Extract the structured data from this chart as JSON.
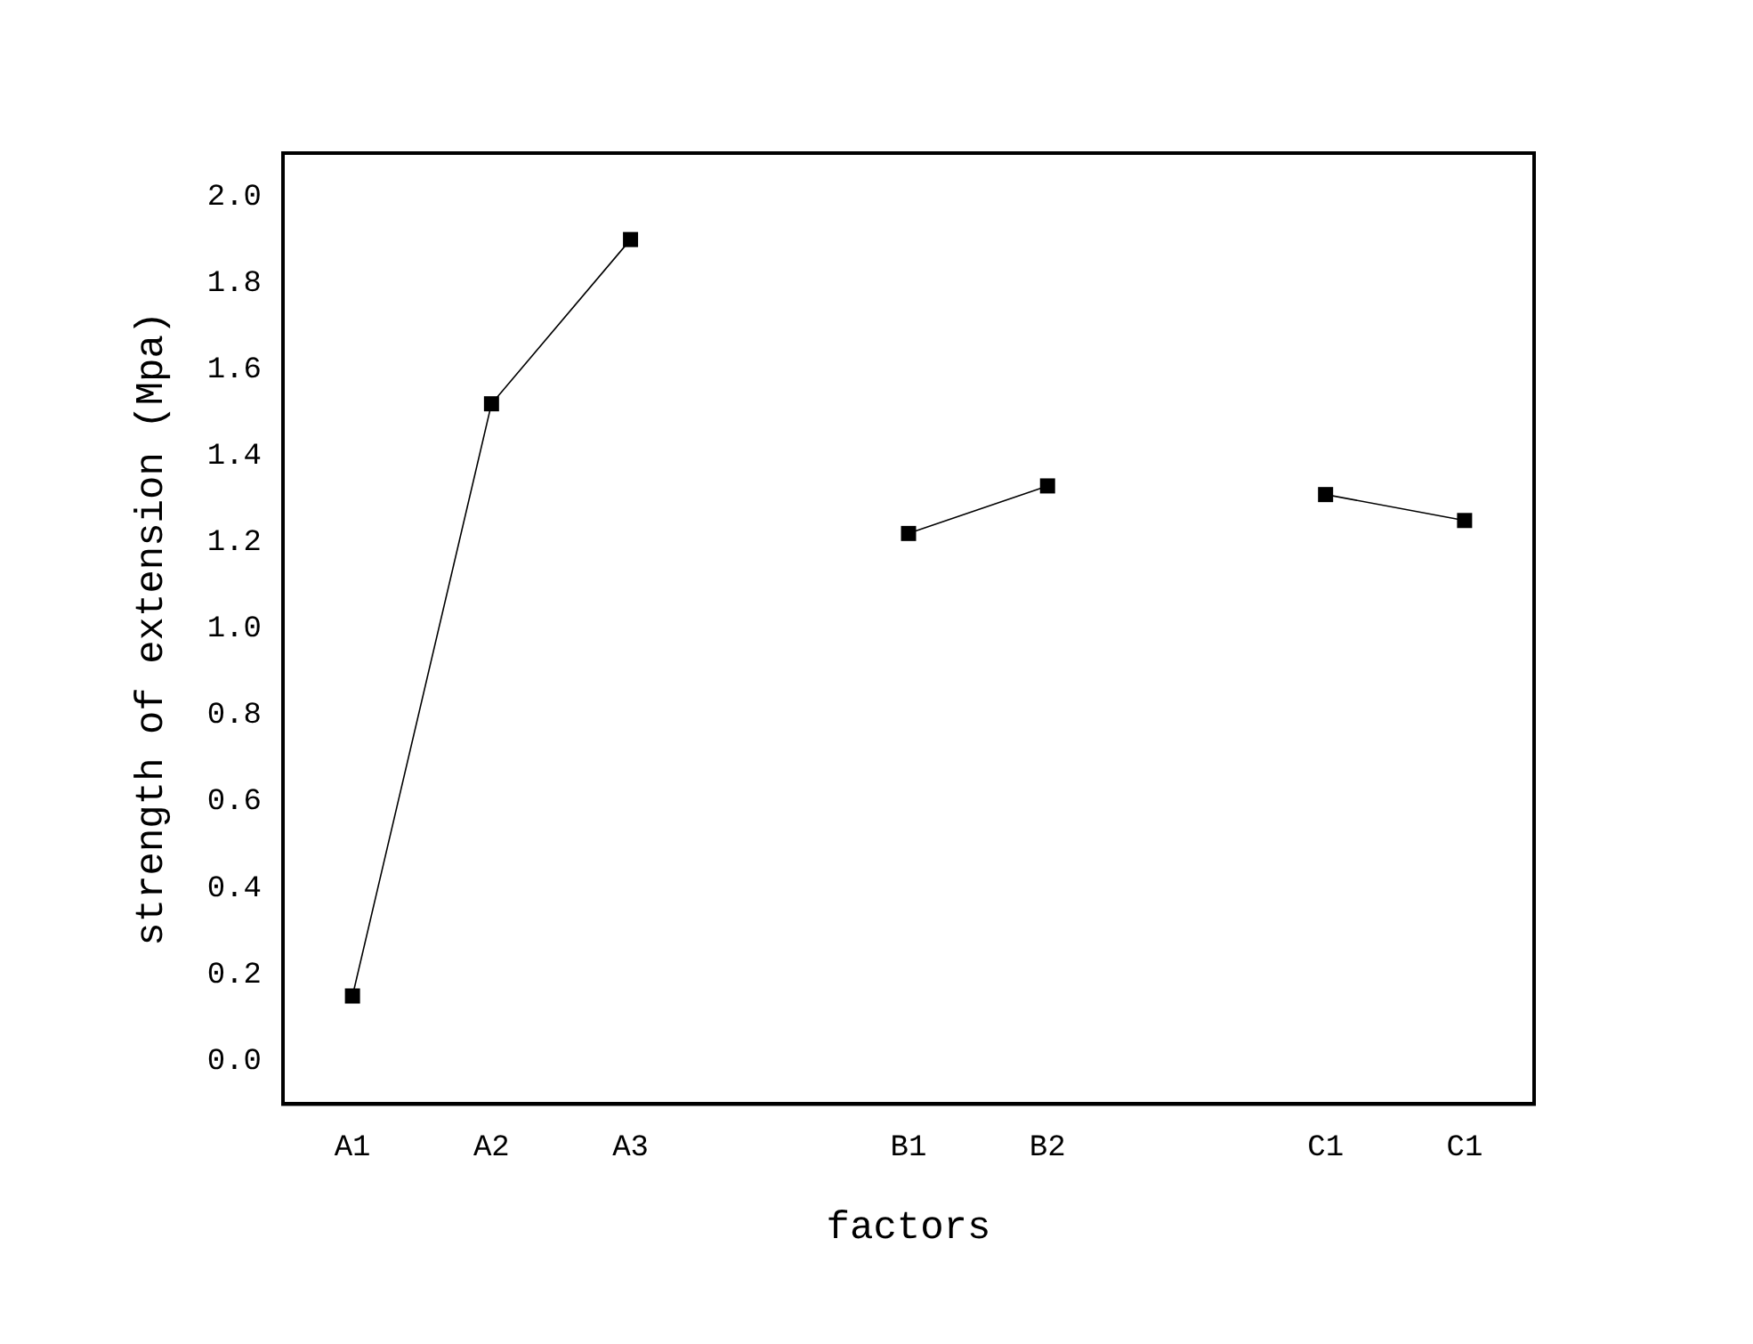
{
  "chart_data": {
    "type": "line",
    "xlabel": "factors",
    "ylabel": "strength of extension (Mpa)",
    "categories": [
      "A1",
      "A2",
      "A3",
      null,
      "B1",
      "B2",
      null,
      "C1",
      "C1"
    ],
    "series": [
      {
        "color": "#000000",
        "values": [
          0.15,
          1.52,
          1.9,
          null,
          1.22,
          1.33,
          null,
          1.31,
          1.25
        ]
      }
    ],
    "ylim": [
      -0.1,
      2.1
    ],
    "yticks": [
      {
        "value": 0,
        "label": "0.0"
      },
      0.2,
      0.4,
      0.6,
      0.8,
      {
        "value": 1,
        "label": "1.0"
      },
      1.2,
      1.4,
      1.6,
      1.8,
      {
        "value": 2,
        "label": "2.0"
      }
    ],
    "marker": "square",
    "line_style": "solid",
    "grid": false,
    "legend": false
  }
}
